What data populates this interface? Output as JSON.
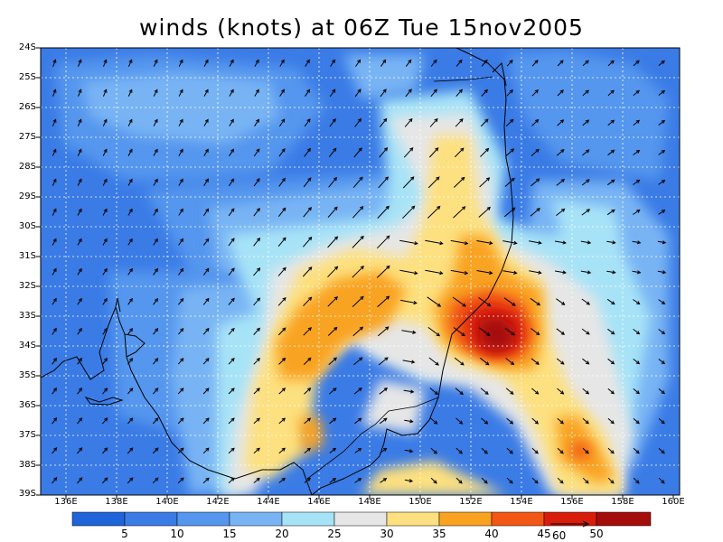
{
  "title": "winds (knots) at 06Z Tue 15nov2005",
  "axes": {
    "lat_labels": [
      "24S",
      "25S",
      "26S",
      "27S",
      "28S",
      "29S",
      "30S",
      "31S",
      "32S",
      "33S",
      "34S",
      "35S",
      "36S",
      "37S",
      "38S",
      "39S"
    ],
    "lon_labels": [
      "136E",
      "138E",
      "140E",
      "142E",
      "144E",
      "146E",
      "148E",
      "150E",
      "152E",
      "154E",
      "156E",
      "158E",
      "160E"
    ],
    "lat_range": [
      -39,
      -24
    ],
    "lon_range": [
      135,
      160
    ],
    "grid": "dotted"
  },
  "colorbar": {
    "labels": [
      "5",
      "10",
      "15",
      "20",
      "25",
      "30",
      "35",
      "40",
      "45",
      "50"
    ],
    "colors": [
      "#1f64d9",
      "#3a7be6",
      "#5596ee",
      "#78b4f4",
      "#a7e3f7",
      "#e6e6e6",
      "#fde07f",
      "#f9a321",
      "#f25715",
      "#d81e0b",
      "#a50d0b"
    ]
  },
  "reference_vector": {
    "label": "60"
  },
  "legend_icons": [
    "coastline",
    "wind-arrow-icon"
  ]
}
